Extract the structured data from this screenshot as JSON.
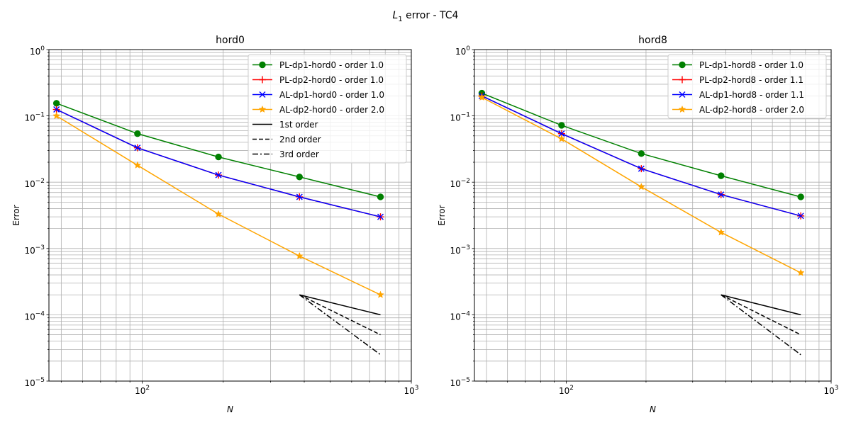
{
  "suptitle": {
    "math": "L",
    "sub": "1",
    "rest": " error - TC4"
  },
  "colors": {
    "PL-dp1": "#008000",
    "PL-dp2": "#ff0000",
    "AL-dp1": "#0000ff",
    "AL-dp2": "#ffa500",
    "reference": "#000000"
  },
  "chart_data": [
    {
      "type": "line",
      "title": "hord0",
      "xlabel": "N",
      "ylabel": "Error",
      "xscale": "log",
      "yscale": "log",
      "xlim": [
        45,
        1000
      ],
      "ylim": [
        1e-05,
        1
      ],
      "grid": "on (major and minor)",
      "legend_position": "top-right",
      "xtick_labels": [
        {
          "base": "10",
          "exp": "2",
          "value": 100
        },
        {
          "base": "10",
          "exp": "3",
          "value": 1000
        }
      ],
      "ytick_labels": [
        {
          "base": "10",
          "exp": "−5",
          "value": 1e-05
        },
        {
          "base": "10",
          "exp": "−4",
          "value": 0.0001
        },
        {
          "base": "10",
          "exp": "−3",
          "value": 0.001
        },
        {
          "base": "10",
          "exp": "−2",
          "value": 0.01
        },
        {
          "base": "10",
          "exp": "−1",
          "value": 0.1
        },
        {
          "base": "10",
          "exp": "0",
          "value": 1
        }
      ],
      "series": [
        {
          "name": "PL-dp1-hord0 - order 1.0",
          "color": "#008000",
          "marker": "circle",
          "x": [
            48,
            96,
            192,
            384,
            768
          ],
          "y": [
            0.155,
            0.054,
            0.024,
            0.012,
            0.006
          ]
        },
        {
          "name": "PL-dp2-hord0 - order 1.0",
          "color": "#ff0000",
          "marker": "plus",
          "x": [
            48,
            96,
            192,
            384,
            768
          ],
          "y": [
            0.125,
            0.033,
            0.0128,
            0.006,
            0.003
          ]
        },
        {
          "name": "AL-dp1-hord0 - order 1.0",
          "color": "#0000ff",
          "marker": "x",
          "x": [
            48,
            96,
            192,
            384,
            768
          ],
          "y": [
            0.125,
            0.033,
            0.0128,
            0.006,
            0.003
          ]
        },
        {
          "name": "AL-dp2-hord0 - order 2.0",
          "color": "#ffa500",
          "marker": "star",
          "x": [
            48,
            96,
            192,
            384,
            768
          ],
          "y": [
            0.1,
            0.018,
            0.0033,
            0.00077,
            0.0002
          ]
        },
        {
          "name": "1st order",
          "color": "#000000",
          "linestyle": "solid",
          "x": [
            384,
            768
          ],
          "y": [
            0.0002,
            0.0001
          ]
        },
        {
          "name": "2nd order",
          "color": "#000000",
          "linestyle": "dashed",
          "x": [
            384,
            768
          ],
          "y": [
            0.0002,
            5e-05
          ]
        },
        {
          "name": "3rd order",
          "color": "#000000",
          "linestyle": "dashdot",
          "x": [
            384,
            768
          ],
          "y": [
            0.0002,
            2.5e-05
          ]
        }
      ]
    },
    {
      "type": "line",
      "title": "hord8",
      "xlabel": "N",
      "ylabel": "Error",
      "xscale": "log",
      "yscale": "log",
      "xlim": [
        45,
        1000
      ],
      "ylim": [
        1e-05,
        1
      ],
      "grid": "on (major and minor)",
      "legend_position": "top-right",
      "xtick_labels": [
        {
          "base": "10",
          "exp": "2",
          "value": 100
        },
        {
          "base": "10",
          "exp": "3",
          "value": 1000
        }
      ],
      "ytick_labels": [
        {
          "base": "10",
          "exp": "−5",
          "value": 1e-05
        },
        {
          "base": "10",
          "exp": "−4",
          "value": 0.0001
        },
        {
          "base": "10",
          "exp": "−3",
          "value": 0.001
        },
        {
          "base": "10",
          "exp": "−2",
          "value": 0.01
        },
        {
          "base": "10",
          "exp": "−1",
          "value": 0.1
        },
        {
          "base": "10",
          "exp": "0",
          "value": 1
        }
      ],
      "series": [
        {
          "name": "PL-dp1-hord8 - order 1.0",
          "color": "#008000",
          "marker": "circle",
          "x": [
            48,
            96,
            192,
            384,
            768
          ],
          "y": [
            0.22,
            0.072,
            0.027,
            0.0125,
            0.006
          ]
        },
        {
          "name": "PL-dp2-hord8 - order 1.1",
          "color": "#ff0000",
          "marker": "plus",
          "x": [
            48,
            96,
            192,
            384,
            768
          ],
          "y": [
            0.2,
            0.054,
            0.016,
            0.0065,
            0.0031
          ]
        },
        {
          "name": "AL-dp1-hord8 - order 1.1",
          "color": "#0000ff",
          "marker": "x",
          "x": [
            48,
            96,
            192,
            384,
            768
          ],
          "y": [
            0.2,
            0.054,
            0.016,
            0.0065,
            0.0031
          ]
        },
        {
          "name": "AL-dp2-hord8 - order 2.0",
          "color": "#ffa500",
          "marker": "star",
          "x": [
            48,
            96,
            192,
            384,
            768
          ],
          "y": [
            0.19,
            0.045,
            0.0085,
            0.00175,
            0.00043
          ]
        },
        {
          "name": "",
          "color": "#000000",
          "linestyle": "solid",
          "x": [
            384,
            768
          ],
          "y": [
            0.0002,
            0.0001
          ]
        },
        {
          "name": "",
          "color": "#000000",
          "linestyle": "dashed",
          "x": [
            384,
            768
          ],
          "y": [
            0.0002,
            5e-05
          ]
        },
        {
          "name": "",
          "color": "#000000",
          "linestyle": "dashdot",
          "x": [
            384,
            768
          ],
          "y": [
            0.0002,
            2.5e-05
          ]
        }
      ]
    }
  ]
}
